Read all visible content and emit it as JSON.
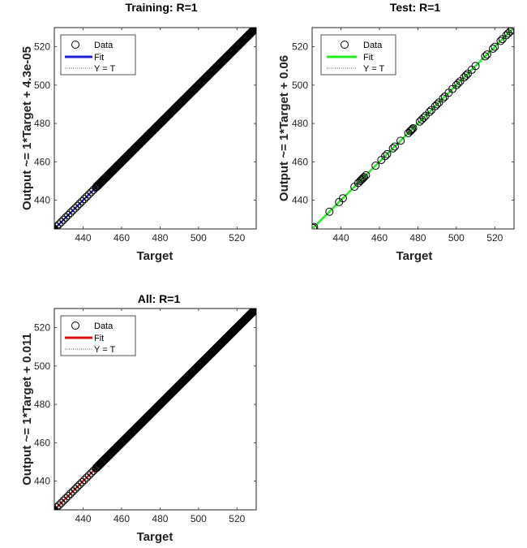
{
  "chart_data": [
    {
      "type": "scatter",
      "title": "Training: R=1",
      "xlabel": "Target",
      "ylabel": "Output ~= 1*Target + 4.3e-05",
      "xlim": [
        425,
        530
      ],
      "ylim": [
        425,
        530
      ],
      "xticks": [
        440,
        460,
        480,
        500,
        520
      ],
      "yticks": [
        440,
        460,
        480,
        500,
        520
      ],
      "grid": false,
      "legend": {
        "placement": "top-left",
        "entries": [
          "Data",
          "Fit",
          "Y = T"
        ]
      },
      "fit_color": "#1f1fd6",
      "data_range": [
        425,
        529
      ],
      "fit": {
        "slope": 1,
        "intercept": 4.3e-05
      }
    },
    {
      "type": "scatter",
      "title": "Test: R=1",
      "xlabel": "Target",
      "ylabel": "Output ~= 1*Target + 0.06",
      "xlim": [
        425,
        530
      ],
      "ylim": [
        425,
        530
      ],
      "xticks": [
        440,
        460,
        480,
        500,
        520
      ],
      "yticks": [
        440,
        460,
        480,
        500,
        520
      ],
      "grid": false,
      "legend": {
        "placement": "top-left",
        "entries": [
          "Data",
          "Fit",
          "Y = T"
        ]
      },
      "fit_color": "#22ee22",
      "points": [
        425.5,
        426,
        434,
        439,
        441,
        447,
        449,
        450,
        450.5,
        451,
        451.5,
        452,
        453,
        458,
        461,
        463,
        464,
        467,
        468,
        471,
        475,
        476,
        476.5,
        477,
        477.5,
        481,
        482,
        483,
        484,
        486,
        487,
        489,
        490,
        491,
        493,
        494,
        496,
        498,
        500,
        501,
        502,
        504,
        505,
        506,
        508,
        510,
        515,
        516,
        519,
        520,
        523,
        524,
        526,
        527,
        528,
        529
      ],
      "fit": {
        "slope": 1,
        "intercept": 0.06
      }
    },
    {
      "type": "scatter",
      "title": "All: R=1",
      "xlabel": "Target",
      "ylabel": "Output ~= 1*Target + 0.011",
      "xlim": [
        425,
        530
      ],
      "ylim": [
        425,
        530
      ],
      "xticks": [
        440,
        460,
        480,
        500,
        520
      ],
      "yticks": [
        440,
        460,
        480,
        500,
        520
      ],
      "grid": false,
      "legend": {
        "placement": "top-left",
        "entries": [
          "Data",
          "Fit",
          "Y = T"
        ]
      },
      "fit_color": "#e01010",
      "data_range": [
        425,
        529
      ],
      "fit": {
        "slope": 1,
        "intercept": 0.011
      }
    }
  ]
}
